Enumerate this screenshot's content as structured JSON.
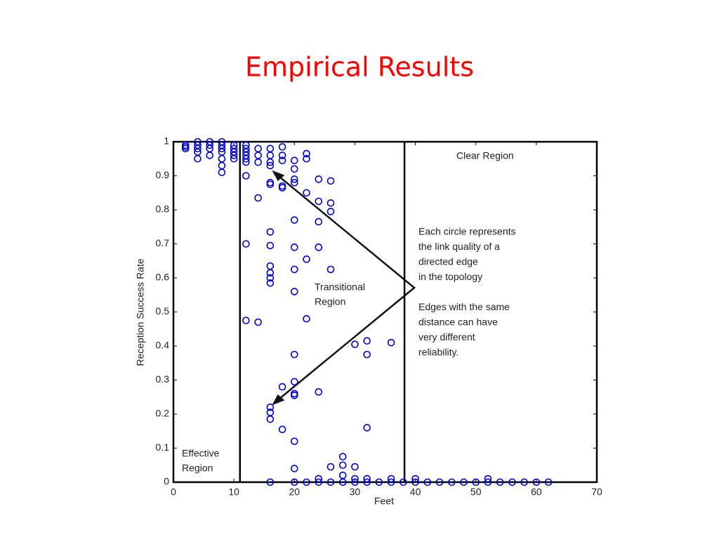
{
  "chart_data": {
    "type": "scatter",
    "title": "Empirical Results",
    "xlabel": "Feet",
    "ylabel": "Reception Success Rate",
    "annotations": {
      "clear": "Clear Region",
      "transitional": [
        "Transitional",
        "Region"
      ],
      "effective": [
        "Effective",
        "Region"
      ],
      "note": [
        "Each circle represents",
        "the link quality of a",
        "directed edge",
        "in the topology",
        "",
        "Edges with the same",
        "distance can have",
        "very different",
        "reliability."
      ]
    },
    "color": "#0000cc",
    "region_boundaries": [
      11,
      38.2
    ],
    "x": [
      2,
      2,
      2,
      4,
      4,
      4,
      4,
      4,
      6,
      6,
      6,
      6,
      8,
      8,
      8,
      8,
      8,
      8,
      8,
      10,
      10,
      10,
      10,
      10,
      12,
      12,
      12,
      12,
      12,
      12,
      12,
      12,
      12,
      14,
      14,
      14,
      14,
      14,
      16,
      16,
      16,
      16,
      16,
      16,
      16,
      16,
      16,
      16,
      16,
      16,
      16,
      16,
      16,
      16,
      18,
      18,
      18,
      18,
      18,
      18,
      18,
      20,
      20,
      20,
      20,
      20,
      20,
      20,
      20,
      20,
      20,
      20,
      20,
      20,
      20,
      20,
      22,
      22,
      22,
      22,
      22,
      22,
      24,
      24,
      24,
      24,
      24,
      24,
      24,
      26,
      26,
      26,
      26,
      26,
      26,
      28,
      28,
      28,
      28,
      30,
      30,
      30,
      30,
      32,
      32,
      32,
      32,
      32,
      34,
      36,
      36,
      36,
      38,
      40,
      40,
      42,
      44,
      46,
      48,
      50,
      52,
      52,
      54,
      56,
      58,
      60,
      62
    ],
    "y": [
      0.99,
      0.985,
      0.98,
      1.0,
      0.99,
      0.98,
      0.97,
      0.95,
      1.0,
      0.99,
      0.98,
      0.96,
      1.0,
      0.99,
      0.98,
      0.97,
      0.95,
      0.93,
      0.91,
      0.99,
      0.98,
      0.97,
      0.96,
      0.95,
      0.99,
      0.98,
      0.97,
      0.96,
      0.95,
      0.94,
      0.9,
      0.7,
      0.475,
      0.98,
      0.96,
      0.94,
      0.835,
      0.47,
      0.98,
      0.96,
      0.94,
      0.93,
      0.88,
      0.875,
      0.735,
      0.695,
      0.635,
      0.615,
      0.6,
      0.585,
      0.22,
      0.205,
      0.185,
      0,
      0.985,
      0.96,
      0.945,
      0.87,
      0.865,
      0.28,
      0.155,
      0.945,
      0.92,
      0.89,
      0.88,
      0.77,
      0.69,
      0.625,
      0.56,
      0.375,
      0.295,
      0.26,
      0.255,
      0.12,
      0.04,
      0,
      0.965,
      0.95,
      0.85,
      0.655,
      0.48,
      0,
      0.89,
      0.825,
      0.765,
      0.69,
      0.265,
      0.01,
      0,
      0.885,
      0.82,
      0.795,
      0.625,
      0.045,
      0,
      0.075,
      0.05,
      0.02,
      0,
      0.405,
      0.045,
      0.01,
      0,
      0.415,
      0.375,
      0.16,
      0.01,
      0,
      0,
      0.41,
      0.01,
      0,
      0,
      0.01,
      0,
      0,
      0,
      0,
      0,
      0,
      0.01,
      0,
      0,
      0,
      0,
      0,
      0
    ],
    "xlim": [
      0,
      70
    ],
    "ylim": [
      0,
      1
    ],
    "xticks": [
      0,
      10,
      20,
      30,
      40,
      50,
      60,
      70
    ],
    "yticks": [
      0,
      0.1,
      0.2,
      0.3,
      0.4,
      0.5,
      0.6,
      0.7,
      0.8,
      0.9,
      1
    ]
  }
}
